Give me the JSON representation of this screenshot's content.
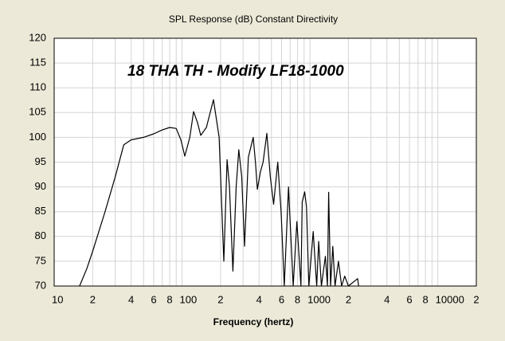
{
  "chart_data": {
    "type": "line",
    "title": "SPL Response (dB)   Constant Directivity",
    "annotation": "18 THA TH - Modify LF18-1000",
    "xlabel": "Frequency (hertz)",
    "x": [
      15.8,
      18,
      20,
      25,
      30,
      35,
      40,
      50,
      60,
      70,
      80,
      90,
      98,
      105,
      115,
      123,
      132,
      140,
      155,
      176,
      195,
      212,
      225,
      235,
      250,
      265,
      278,
      293,
      308,
      330,
      360,
      375,
      388,
      410,
      430,
      460,
      490,
      520,
      560,
      595,
      630,
      680,
      740,
      790,
      850,
      870,
      910,
      940,
      980,
      1060,
      1130,
      1170,
      1230,
      1320,
      1370,
      1400,
      1450,
      1510,
      1570,
      1670,
      1770,
      1870,
      2000,
      2360,
      2400
    ],
    "values": [
      70,
      73.5,
      77,
      85,
      92,
      98.5,
      99.5,
      100,
      100.7,
      101.5,
      102,
      101.8,
      99.5,
      96.2,
      100,
      105.2,
      103,
      100.4,
      102,
      107.6,
      100,
      75,
      95.5,
      90,
      73,
      90,
      97.5,
      92,
      78,
      96,
      100,
      95,
      89.5,
      93,
      95,
      100.8,
      92,
      86.5,
      95,
      85,
      70,
      90,
      70,
      83,
      70,
      87,
      89,
      86,
      70,
      81,
      70,
      79,
      70,
      76,
      70,
      88.9,
      70,
      78,
      70,
      75,
      70,
      72,
      70,
      71.5,
      70
    ],
    "color": "#000000",
    "annotation_color": "#1a1aff",
    "xscale": "log",
    "xlim": [
      10,
      20000
    ],
    "xticks": [
      10,
      {
        "value": 20,
        "label": "2"
      },
      {
        "value": 40,
        "label": "4"
      },
      {
        "value": 60,
        "label": "6"
      },
      {
        "value": 80,
        "label": "8"
      },
      100,
      {
        "value": 200,
        "label": "2"
      },
      {
        "value": 400,
        "label": "4"
      },
      {
        "value": 600,
        "label": "6"
      },
      {
        "value": 800,
        "label": "8"
      },
      1000,
      {
        "value": 2000,
        "label": "2"
      },
      {
        "value": 4000,
        "label": "4"
      },
      {
        "value": 6000,
        "label": "6"
      },
      {
        "value": 8000,
        "label": "8"
      },
      10000,
      {
        "value": 20000,
        "label": "2"
      }
    ],
    "xminor_ticks": [
      30,
      50,
      70,
      90,
      300,
      500,
      700,
      900,
      3000,
      5000,
      7000,
      9000
    ],
    "ylim": [
      70,
      120
    ],
    "yticks": [
      70,
      75,
      80,
      85,
      90,
      95,
      100,
      105,
      110,
      115,
      120
    ],
    "grid": true
  }
}
